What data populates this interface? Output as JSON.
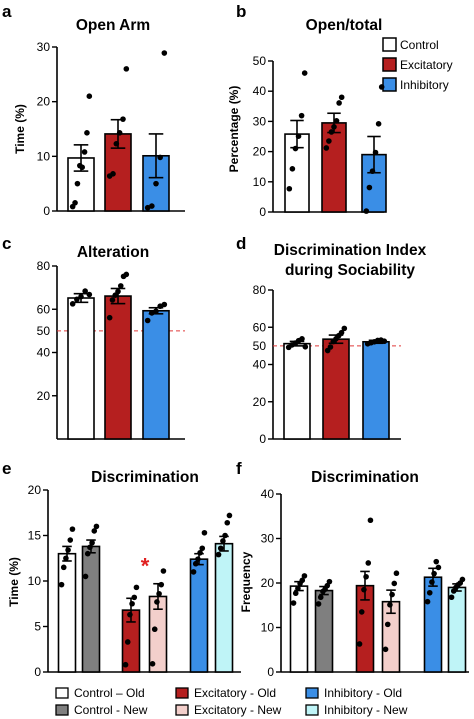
{
  "colors": {
    "control": "#ffffff",
    "excitatory": "#b51f1f",
    "inhibitory": "#3a8ee6",
    "control_new": "#7f7f7f",
    "excitatory_new": "#f3cfcb",
    "inhibitory_new": "#bff4f7",
    "reference_line": "#e03a3a",
    "star": "#e02020"
  },
  "chart_data": [
    {
      "panel": "a",
      "type": "bar",
      "title": "Open  Arm",
      "ylabel": "Time (%)",
      "ylim": [
        0,
        30
      ],
      "yticks": [
        0,
        10,
        20,
        30
      ],
      "bars": [
        {
          "group": "Control",
          "value": 9.7,
          "sem": 2.4,
          "color": "control",
          "points": [
            0.8,
            1.5,
            5,
            8.3,
            8,
            10.8,
            14.3,
            21
          ]
        },
        {
          "group": "Excitatory",
          "value": 14.1,
          "sem": 2.6,
          "color": "excitatory",
          "points": [
            6.4,
            6.8,
            12.3,
            14.3,
            16.8,
            26
          ]
        },
        {
          "group": "Inhibitory",
          "value": 10.1,
          "sem": 4,
          "color": "inhibitory",
          "points": [
            0.6,
            0.9,
            5,
            9.8,
            28.9
          ]
        }
      ]
    },
    {
      "panel": "b",
      "type": "bar",
      "title": "Open/total",
      "ylabel": "Percentage (%)",
      "ylim": [
        0,
        50
      ],
      "yticks": [
        0,
        10,
        20,
        30,
        40,
        50
      ],
      "legend": [
        "Control",
        "Excitatory",
        "Inhibitory"
      ],
      "bars": [
        {
          "group": "Control",
          "value": 25.8,
          "sem": 4.5,
          "color": "control",
          "points": [
            7.7,
            14.3,
            21,
            25.1,
            31.9,
            46
          ]
        },
        {
          "group": "Excitatory",
          "value": 29.5,
          "sem": 3.2,
          "color": "excitatory",
          "points": [
            21.2,
            23.5,
            26.5,
            28.2,
            30.2,
            36.1,
            38
          ]
        },
        {
          "group": "Inhibitory",
          "value": 19,
          "sem": 6,
          "color": "inhibitory",
          "points": [
            0.3,
            8.1,
            13.5,
            19.7,
            29.2,
            41.4
          ]
        }
      ]
    },
    {
      "panel": "c",
      "type": "bar",
      "title": "Alteration",
      "ylim": [
        0,
        80
      ],
      "yticks": [
        20,
        40,
        60,
        80
      ],
      "reference": {
        "value": 50,
        "label": "50"
      },
      "bars": [
        {
          "group": "Control",
          "value": 65.2,
          "sem": 2,
          "color": "control",
          "points": [
            62.5,
            64.6,
            65.8,
            68.4,
            66.8
          ]
        },
        {
          "group": "Excitatory",
          "value": 66.1,
          "sem": 3.5,
          "color": "excitatory",
          "points": [
            56.1,
            64.3,
            66.5,
            68.2,
            70.8,
            75.2,
            76.1
          ]
        },
        {
          "group": "Inhibitory",
          "value": 59.3,
          "sem": 1.4,
          "color": "inhibitory",
          "points": [
            54.8,
            58.3,
            59.1,
            61.4,
            62.2
          ]
        }
      ]
    },
    {
      "panel": "d",
      "type": "bar",
      "title_line1": "Discrimination Index",
      "title_line2": "during Sociability",
      "ylim": [
        0,
        80
      ],
      "yticks": [
        0,
        20,
        40,
        60,
        80
      ],
      "reference": {
        "value": 50,
        "label": "50"
      },
      "bars": [
        {
          "group": "Control",
          "value": 51.2,
          "sem": 1.2,
          "color": "control",
          "points": [
            49.2,
            50.5,
            51.5,
            52.8,
            53.8,
            49.5
          ]
        },
        {
          "group": "Excitatory",
          "value": 53.6,
          "sem": 2.2,
          "color": "excitatory",
          "points": [
            47.5,
            49.4,
            52.3,
            53.8,
            55.5,
            57.1,
            59.4
          ]
        },
        {
          "group": "Inhibitory",
          "value": 52.2,
          "sem": 0.8,
          "color": "inhibitory",
          "points": [
            51.1,
            51.7,
            52.2,
            52.9,
            53.1,
            52.5
          ]
        }
      ]
    },
    {
      "panel": "e",
      "type": "bar",
      "title": "Discrimination",
      "ylabel": "Time (%)",
      "ylim": [
        0,
        20
      ],
      "yticks": [
        0,
        5,
        10,
        15,
        20
      ],
      "annotation": {
        "text": "*",
        "bar_index": 2
      },
      "bars": [
        {
          "group": "Control – Old",
          "value": 13,
          "sem": 0.8,
          "color": "control",
          "points": [
            9.6,
            11.5,
            12.5,
            13.4,
            14.5,
            15.7
          ]
        },
        {
          "group": "Control - New",
          "value": 13.8,
          "sem": 0.7,
          "color": "control_new",
          "points": [
            10.5,
            13,
            13.7,
            14.2,
            15.5,
            16
          ]
        },
        {
          "group": "Excitatory - Old",
          "value": 6.8,
          "sem": 1.3,
          "color": "excitatory",
          "points": [
            0.8,
            3.3,
            6.3,
            7.5,
            8.2,
            9.3
          ]
        },
        {
          "group": "Excitatory  - New",
          "value": 8.3,
          "sem": 1.4,
          "color": "excitatory_new",
          "points": [
            0.9,
            4.7,
            7.7,
            8.6,
            9.6,
            11.1
          ]
        },
        {
          "group": "Inhibitory - Old",
          "value": 12.4,
          "sem": 0.6,
          "color": "inhibitory",
          "points": [
            11,
            11.9,
            12.4,
            13.1,
            13.6,
            15.3
          ]
        },
        {
          "group": "Inhibitory  - New",
          "value": 14.1,
          "sem": 0.8,
          "color": "inhibitory_new",
          "points": [
            12.9,
            13.6,
            14.4,
            15,
            16.4,
            17.2
          ]
        }
      ]
    },
    {
      "panel": "f",
      "type": "bar",
      "title": "Discrimination",
      "ylabel": "Frequency",
      "ylim": [
        0,
        40
      ],
      "yticks": [
        0,
        10,
        20,
        30,
        40
      ],
      "bars": [
        {
          "group": "Control – Old",
          "value": 19.3,
          "sem": 1,
          "color": "control",
          "points": [
            15.5,
            17.7,
            18.8,
            19.9,
            20.6,
            21.6
          ]
        },
        {
          "group": "Control - New",
          "value": 18.3,
          "sem": 0.9,
          "color": "control_new",
          "points": [
            15.3,
            16.8,
            18.1,
            18.6,
            19.4,
            20.3
          ]
        },
        {
          "group": "Excitatory - Old",
          "value": 19.4,
          "sem": 3.2,
          "color": "excitatory",
          "points": [
            6.3,
            13.5,
            18.5,
            21.4,
            24.5,
            34.1
          ]
        },
        {
          "group": "Excitatory  - New",
          "value": 15.8,
          "sem": 2.6,
          "color": "excitatory_new",
          "points": [
            5.1,
            10.7,
            15.1,
            17.4,
            19.9,
            22.2
          ]
        },
        {
          "group": "Inhibitory - Old",
          "value": 21.3,
          "sem": 2,
          "color": "inhibitory",
          "points": [
            15.8,
            17.8,
            20.2,
            22.1,
            24.8,
            23.5
          ]
        },
        {
          "group": "Inhibitory  - New",
          "value": 19,
          "sem": 0.8,
          "color": "inhibitory_new",
          "points": [
            16.8,
            18.2,
            19,
            19.6,
            20,
            20.8
          ]
        }
      ]
    }
  ],
  "legend_bottom": [
    {
      "label": "Control – Old",
      "color": "control"
    },
    {
      "label": "Excitatory - Old",
      "color": "excitatory"
    },
    {
      "label": "Inhibitory - Old",
      "color": "inhibitory"
    },
    {
      "label": "Control - New",
      "color": "control_new"
    },
    {
      "label": "Excitatory  - New",
      "color": "excitatory_new"
    },
    {
      "label": "Inhibitory  - New",
      "color": "inhibitory_new"
    }
  ]
}
